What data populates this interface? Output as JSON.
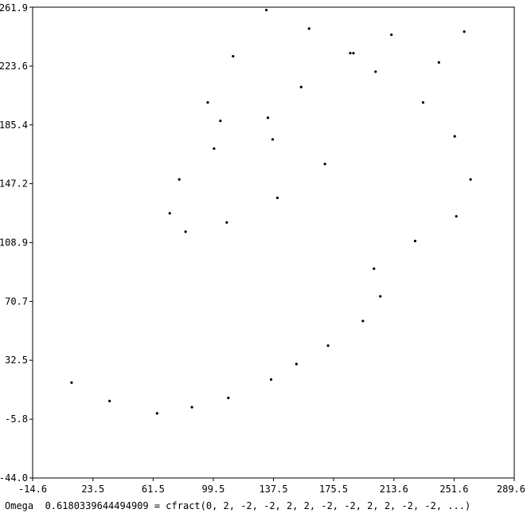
{
  "chart_data": {
    "type": "scatter",
    "title": "",
    "xlabel": "",
    "ylabel": "",
    "xlim": [
      -14.6,
      289.6
    ],
    "ylim": [
      -44.0,
      261.9
    ],
    "x_ticks": [
      -14.6,
      23.5,
      61.5,
      99.5,
      137.5,
      175.5,
      213.6,
      251.6,
      289.6
    ],
    "x_tick_labels": [
      "-14.6",
      "23.5",
      "61.5",
      "99.5",
      "137.5",
      "175.5",
      "213.6",
      "251.6",
      "289.6"
    ],
    "y_ticks": [
      261.9,
      223.6,
      185.4,
      147.2,
      108.9,
      70.7,
      32.5,
      -5.8,
      -44.0
    ],
    "y_tick_labels": [
      "261.9",
      "223.6",
      "185.4",
      "147.2",
      "108.9",
      "70.7",
      "32.5",
      "-5.8",
      "-44.0"
    ],
    "grid": false,
    "series": [
      {
        "marker_color": "#000000",
        "x": [
          10,
          34,
          64,
          86,
          109,
          136,
          152,
          172,
          194,
          205,
          201,
          227,
          253,
          262,
          252,
          232,
          202,
          186,
          160,
          133,
          112,
          96,
          104,
          137,
          170,
          140,
          108,
          82,
          72,
          78,
          100,
          134,
          155,
          188,
          212,
          242,
          258
        ],
        "y": [
          18,
          6,
          -2,
          2,
          8,
          20,
          30,
          42,
          58,
          74,
          92,
          110,
          126,
          150,
          178,
          200,
          220,
          232,
          248,
          260,
          230,
          200,
          188,
          176,
          160,
          138,
          122,
          116,
          128,
          150,
          170,
          190,
          210,
          232,
          244,
          226,
          246
        ]
      }
    ]
  },
  "caption": "Omega  0.6180339644494909 = cfract(0, 2, -2, -2, 2, 2, -2, -2, 2, 2, -2, -2, ...)"
}
